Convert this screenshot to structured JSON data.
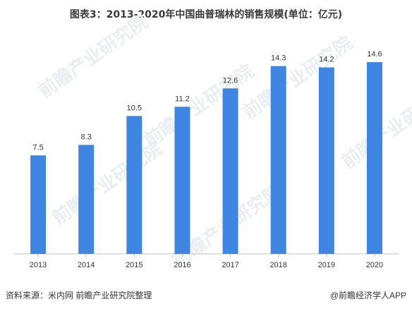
{
  "title": "图表3：2013-2020年中国曲普瑞林的销售规模(单位：亿元)",
  "watermark": "前瞻产业研究院",
  "footer": {
    "source": "资料来源：米内网 前瞻产业研究院整理",
    "brand": "@前瞻经济学人APP"
  },
  "colors": {
    "bar": "#3f86e2",
    "axis": "#bfbfbf",
    "text": "#333333"
  },
  "chart_data": {
    "type": "bar",
    "title": "图表3：2013-2020年中国曲普瑞林的销售规模(单位：亿元)",
    "categories": [
      "2013",
      "2014",
      "2015",
      "2016",
      "2017",
      "2018",
      "2019",
      "2020"
    ],
    "values": [
      7.5,
      8.3,
      10.5,
      11.2,
      12.6,
      14.3,
      14.2,
      14.6
    ],
    "value_labels": [
      "7.5",
      "8.3",
      "10.5",
      "11.2",
      "12.6",
      "14.3",
      "14.2",
      "14.6"
    ],
    "xlabel": "",
    "ylabel": "",
    "ylim": [
      0,
      16
    ],
    "grid": false,
    "legend": "none"
  }
}
